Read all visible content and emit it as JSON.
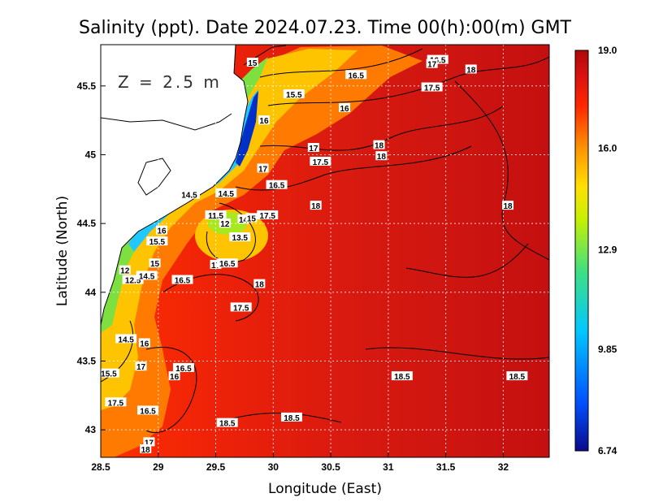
{
  "chart_data": {
    "type": "heatmap",
    "title": "Salinity (ppt). Date 2024.07.23. Time 00(h):00(m) GMT",
    "xlabel": "Longitude (East)",
    "ylabel": "Latitude (North)",
    "depth_label": "Z = 2.5 m",
    "xlim": [
      28.5,
      32.4
    ],
    "ylim": [
      42.8,
      45.8
    ],
    "x_ticks": [
      "28.5",
      "29",
      "29.5",
      "30",
      "30.5",
      "31",
      "31.5",
      "32"
    ],
    "x_tick_values": [
      28.5,
      29,
      29.5,
      30,
      30.5,
      31,
      31.5,
      32
    ],
    "y_ticks": [
      "43",
      "43.5",
      "44",
      "44.5",
      "45",
      "45.5"
    ],
    "y_tick_values": [
      43,
      43.5,
      44,
      44.5,
      45,
      45.5
    ],
    "grid": true,
    "colorbar": {
      "min": 6.74,
      "max": 19.0,
      "tick_labels": [
        "19.0",
        "16.0",
        "12.9",
        "9.85",
        "6.74"
      ],
      "tick_values": [
        19.0,
        16.0,
        12.9,
        9.85,
        6.74
      ],
      "colors": [
        "#0a0a8c",
        "#0050ff",
        "#00c8ff",
        "#40e080",
        "#c8f000",
        "#ffe000",
        "#ff9000",
        "#ff2800",
        "#d81010",
        "#b00808"
      ]
    },
    "contour_labels": [
      {
        "text": "15",
        "lon": 29.82,
        "lat": 45.67
      },
      {
        "text": "16.5",
        "lon": 30.72,
        "lat": 45.58
      },
      {
        "text": "16.5",
        "lon": 31.43,
        "lat": 45.69
      },
      {
        "text": "17",
        "lon": 31.38,
        "lat": 45.66
      },
      {
        "text": "18",
        "lon": 31.72,
        "lat": 45.62
      },
      {
        "text": "17.5",
        "lon": 31.38,
        "lat": 45.49
      },
      {
        "text": "15.5",
        "lon": 30.18,
        "lat": 45.44
      },
      {
        "text": "16",
        "lon": 30.62,
        "lat": 45.34
      },
      {
        "text": "16",
        "lon": 29.92,
        "lat": 45.25
      },
      {
        "text": "17",
        "lon": 30.35,
        "lat": 45.05
      },
      {
        "text": "17.5",
        "lon": 30.41,
        "lat": 44.95
      },
      {
        "text": "18",
        "lon": 30.92,
        "lat": 45.07
      },
      {
        "text": "18",
        "lon": 30.94,
        "lat": 44.99
      },
      {
        "text": "17",
        "lon": 29.91,
        "lat": 44.9
      },
      {
        "text": "16.5",
        "lon": 30.03,
        "lat": 44.78
      },
      {
        "text": "14.5",
        "lon": 29.27,
        "lat": 44.71
      },
      {
        "text": "14.5",
        "lon": 29.59,
        "lat": 44.72
      },
      {
        "text": "18",
        "lon": 30.37,
        "lat": 44.63
      },
      {
        "text": "18",
        "lon": 32.04,
        "lat": 44.63
      },
      {
        "text": "11.5",
        "lon": 29.5,
        "lat": 44.56
      },
      {
        "text": "12",
        "lon": 29.58,
        "lat": 44.5
      },
      {
        "text": "14",
        "lon": 29.74,
        "lat": 44.53
      },
      {
        "text": "15",
        "lon": 29.81,
        "lat": 44.54
      },
      {
        "text": "17.5",
        "lon": 29.95,
        "lat": 44.56
      },
      {
        "text": "13.5",
        "lon": 29.71,
        "lat": 44.4
      },
      {
        "text": "16",
        "lon": 29.03,
        "lat": 44.45
      },
      {
        "text": "15.5",
        "lon": 28.99,
        "lat": 44.37
      },
      {
        "text": "15",
        "lon": 28.97,
        "lat": 44.21
      },
      {
        "text": "12",
        "lon": 28.71,
        "lat": 44.16
      },
      {
        "text": "12.5",
        "lon": 28.78,
        "lat": 44.09
      },
      {
        "text": "14.5",
        "lon": 28.9,
        "lat": 44.12
      },
      {
        "text": "16.5",
        "lon": 29.21,
        "lat": 44.09
      },
      {
        "text": "17",
        "lon": 29.5,
        "lat": 44.2
      },
      {
        "text": "16.5",
        "lon": 29.6,
        "lat": 44.21
      },
      {
        "text": "18",
        "lon": 29.88,
        "lat": 44.06
      },
      {
        "text": "17.5",
        "lon": 29.72,
        "lat": 43.89
      },
      {
        "text": "14.5",
        "lon": 28.72,
        "lat": 43.66
      },
      {
        "text": "16",
        "lon": 28.88,
        "lat": 43.63
      },
      {
        "text": "17",
        "lon": 28.85,
        "lat": 43.46
      },
      {
        "text": "16.5",
        "lon": 29.22,
        "lat": 43.45
      },
      {
        "text": "16",
        "lon": 29.14,
        "lat": 43.39
      },
      {
        "text": "15.5",
        "lon": 28.57,
        "lat": 43.41
      },
      {
        "text": "17.5",
        "lon": 28.63,
        "lat": 43.2
      },
      {
        "text": "16.5",
        "lon": 28.91,
        "lat": 43.14
      },
      {
        "text": "18.5",
        "lon": 31.12,
        "lat": 43.39
      },
      {
        "text": "18.5",
        "lon": 32.12,
        "lat": 43.39
      },
      {
        "text": "18.5",
        "lon": 29.6,
        "lat": 43.05
      },
      {
        "text": "18.5",
        "lon": 30.16,
        "lat": 43.09
      },
      {
        "text": "17",
        "lon": 28.92,
        "lat": 42.91
      },
      {
        "text": "18",
        "lon": 28.89,
        "lat": 42.86
      }
    ]
  }
}
